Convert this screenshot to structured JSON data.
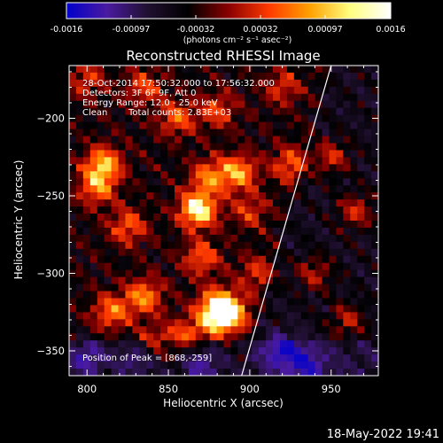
{
  "colorbar": {
    "colors": [
      "#0000cc",
      "#4a1aa0",
      "#201030",
      "#000000",
      "#8a0000",
      "#ff3a00",
      "#ffa000",
      "#ffff80",
      "#ffffff"
    ],
    "tick_labels": [
      "-0.0016",
      "-0.00097",
      "-0.00032",
      "0.00032",
      "0.00097",
      "0.0016"
    ],
    "units": "(photons cm⁻² s⁻¹ asec⁻²)"
  },
  "chart_data": {
    "type": "heatmap",
    "title": "Reconstructed RHESSI Image",
    "xlabel": "Heliocentric X (arcsec)",
    "ylabel": "Heliocentric Y (arcsec)",
    "xlim": [
      789,
      979
    ],
    "ylim": [
      -366,
      -166
    ],
    "x_ticks": [
      800,
      850,
      900,
      950
    ],
    "y_ticks": [
      -200,
      -250,
      -300,
      -350
    ],
    "x_tick_labels": [
      "800",
      "850",
      "900",
      "950"
    ],
    "y_tick_labels": [
      "−200",
      "−250",
      "−300",
      "−350"
    ],
    "value_range": [
      -0.0016,
      0.0016
    ],
    "peak": {
      "x": 868,
      "y": -259
    },
    "limb_line": [
      [
        895,
        -366
      ],
      [
        950,
        -166
      ]
    ],
    "sources": [
      {
        "x": 868,
        "y": -259,
        "value": 0.0016
      },
      {
        "x": 875,
        "y": -238,
        "value": 0.0009
      },
      {
        "x": 893,
        "y": -235,
        "value": 0.0011
      },
      {
        "x": 880,
        "y": -320,
        "value": 0.001
      },
      {
        "x": 888,
        "y": -326,
        "value": 0.0012
      },
      {
        "x": 878,
        "y": -330,
        "value": 0.0009
      },
      {
        "x": 810,
        "y": -230,
        "value": 0.0012
      },
      {
        "x": 806,
        "y": -245,
        "value": 0.0009
      },
      {
        "x": 825,
        "y": -270,
        "value": 0.0008
      },
      {
        "x": 815,
        "y": -325,
        "value": 0.0009
      },
      {
        "x": 835,
        "y": -315,
        "value": 0.001
      },
      {
        "x": 870,
        "y": -290,
        "value": 0.0008
      },
      {
        "x": 855,
        "y": -200,
        "value": 0.0008
      },
      {
        "x": 880,
        "y": -195,
        "value": 0.0007
      },
      {
        "x": 900,
        "y": -260,
        "value": 0.0006
      },
      {
        "x": 925,
        "y": -230,
        "value": 0.0008
      },
      {
        "x": 950,
        "y": -225,
        "value": 0.0007
      },
      {
        "x": 965,
        "y": -260,
        "value": 0.0007
      },
      {
        "x": 940,
        "y": -300,
        "value": 0.0006
      },
      {
        "x": 960,
        "y": -330,
        "value": 0.0006
      },
      {
        "x": 860,
        "y": -340,
        "value": 0.0007
      },
      {
        "x": 840,
        "y": -345,
        "value": 0.0006
      },
      {
        "x": 905,
        "y": -300,
        "value": 0.0006
      },
      {
        "x": 920,
        "y": -350,
        "value": -0.0009
      },
      {
        "x": 935,
        "y": -360,
        "value": -0.0008
      },
      {
        "x": 870,
        "y": -360,
        "value": -0.0007
      },
      {
        "x": 800,
        "y": -355,
        "value": -0.0008
      },
      {
        "x": 830,
        "y": -355,
        "value": -0.0006
      },
      {
        "x": 800,
        "y": -175,
        "value": 0.0006
      },
      {
        "x": 835,
        "y": -180,
        "value": 0.0007
      },
      {
        "x": 920,
        "y": -180,
        "value": 0.0006
      }
    ]
  },
  "annotations": {
    "time": "28-Oct-2014 17:50:32.000 to 17:56:32.000",
    "detectors": "Detectors: 3F 6F 9F, Att 0",
    "energy": "Energy Range: 12.0 - 25.0 keV",
    "clean": "Clean",
    "counts": "Total counts: 2.83E+03",
    "peak_label": "Position of Peak = [868,-259]"
  },
  "timestamp": "18-May-2022 19:41"
}
